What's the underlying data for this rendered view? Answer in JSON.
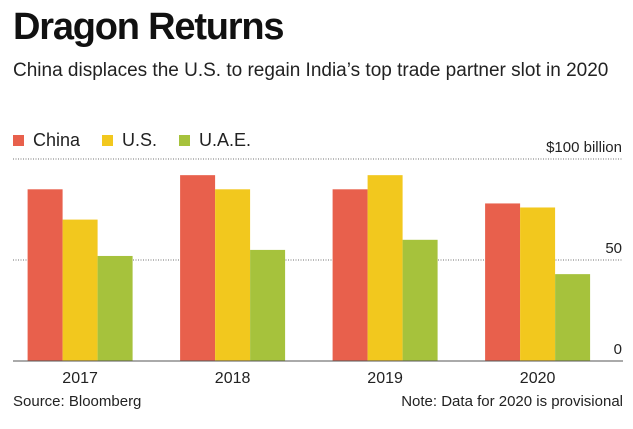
{
  "title": "Dragon Returns",
  "subtitle": "China displaces the U.S. to regain India’s top trade partner slot in 2020",
  "source": "Source: Bloomberg",
  "note": "Note: Data for 2020 is provisional",
  "colors": {
    "China": "#e8604c",
    "U.S.": "#f2c81e",
    "U.A.E.": "#a6c23c"
  },
  "chart_data": {
    "type": "bar",
    "categories": [
      "2017",
      "2018",
      "2019",
      "2020"
    ],
    "series": [
      {
        "name": "China",
        "values": [
          85,
          92,
          85,
          78
        ]
      },
      {
        "name": "U.S.",
        "values": [
          70,
          85,
          92,
          76
        ]
      },
      {
        "name": "U.A.E.",
        "values": [
          52,
          55,
          60,
          43
        ]
      }
    ],
    "ylim": [
      0,
      100
    ],
    "yticks": [
      {
        "value": 100,
        "label": "$100 billion"
      },
      {
        "value": 50,
        "label": "50"
      },
      {
        "value": 0,
        "label": "0"
      }
    ],
    "grid": true,
    "legend": "top-left"
  }
}
